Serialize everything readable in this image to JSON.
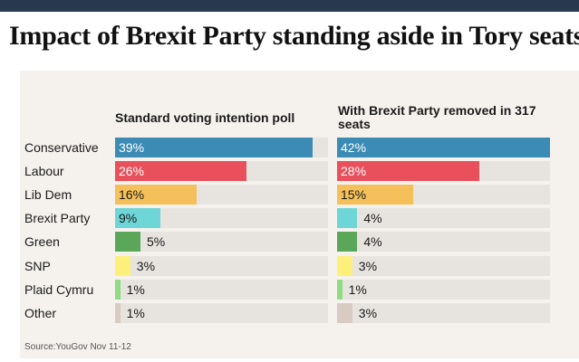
{
  "title": "Impact of Brexit Party standing aside in Tory seats",
  "source": "Source:YouGov Nov 11-12",
  "colors": {
    "Conservative": "#3b8bb4",
    "Labour": "#e8505b",
    "Lib Dem": "#f5c05a",
    "Brexit Party": "#6ed6d6",
    "Green": "#5aa75a",
    "SNP": "#fdf07a",
    "Plaid Cymru": "#8fdc82",
    "Other": "#d8ccc2"
  },
  "chart_data": [
    {
      "type": "bar",
      "orientation": "horizontal",
      "title": "Standard voting intention poll",
      "categories": [
        "Conservative",
        "Labour",
        "Lib Dem",
        "Brexit Party",
        "Green",
        "SNP",
        "Plaid Cymru",
        "Other"
      ],
      "values": [
        39,
        26,
        16,
        9,
        5,
        3,
        1,
        1
      ],
      "labels": [
        "39%",
        "26%",
        "16%",
        "9%",
        "5%",
        "3%",
        "1%",
        "1%"
      ],
      "unit": "%",
      "xlim": [
        0,
        42
      ]
    },
    {
      "type": "bar",
      "orientation": "horizontal",
      "title": "With Brexit Party removed in 317 seats",
      "categories": [
        "Conservative",
        "Labour",
        "Lib Dem",
        "Brexit Party",
        "Green",
        "SNP",
        "Plaid Cymru",
        "Other"
      ],
      "values": [
        42,
        28,
        15,
        4,
        4,
        3,
        1,
        3
      ],
      "labels": [
        "42%",
        "28%",
        "15%",
        "4%",
        "4%",
        "3%",
        "1%",
        "3%"
      ],
      "unit": "%",
      "xlim": [
        0,
        42
      ]
    }
  ]
}
